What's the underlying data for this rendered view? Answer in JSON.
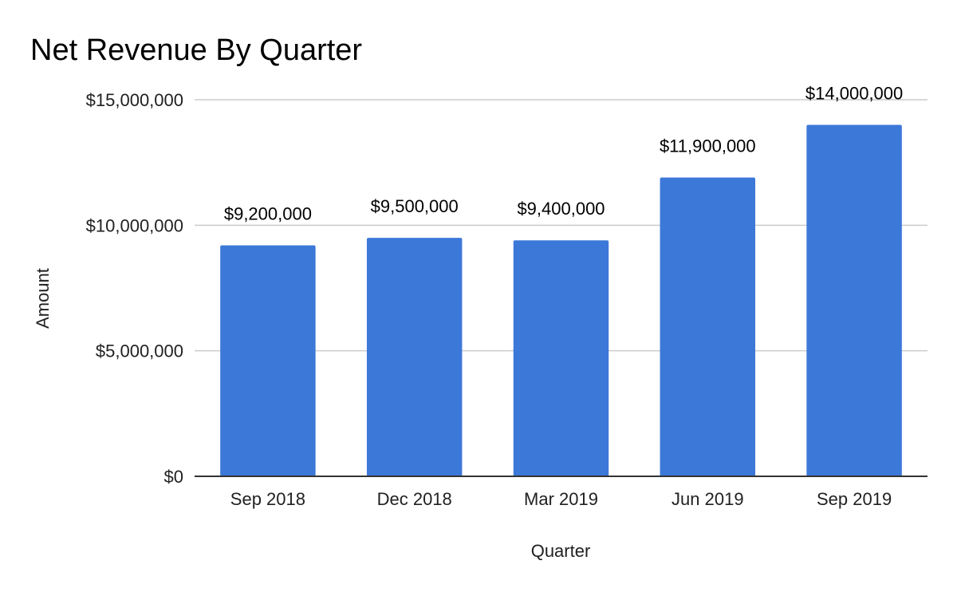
{
  "chart_data": {
    "type": "bar",
    "title": "Net Revenue By Quarter",
    "xlabel": "Quarter",
    "ylabel": "Amount",
    "categories": [
      "Sep 2018",
      "Dec 2018",
      "Mar 2019",
      "Jun 2019",
      "Sep 2019"
    ],
    "series": [
      {
        "values": [
          9200000,
          9500000,
          9400000,
          11900000,
          14000000
        ],
        "data_labels": [
          "$9,200,000",
          "$9,500,000",
          "$9,400,000",
          "$11,900,000",
          "$14,000,000"
        ],
        "color": "#3c78d8"
      }
    ],
    "yticks": [
      0,
      5000000,
      10000000,
      15000000
    ],
    "ytick_labels": [
      "$0",
      "$5,000,000",
      "$10,000,000",
      "$15,000,000"
    ],
    "ylim": [
      0,
      15000000
    ],
    "grid": true,
    "legend": "none"
  }
}
